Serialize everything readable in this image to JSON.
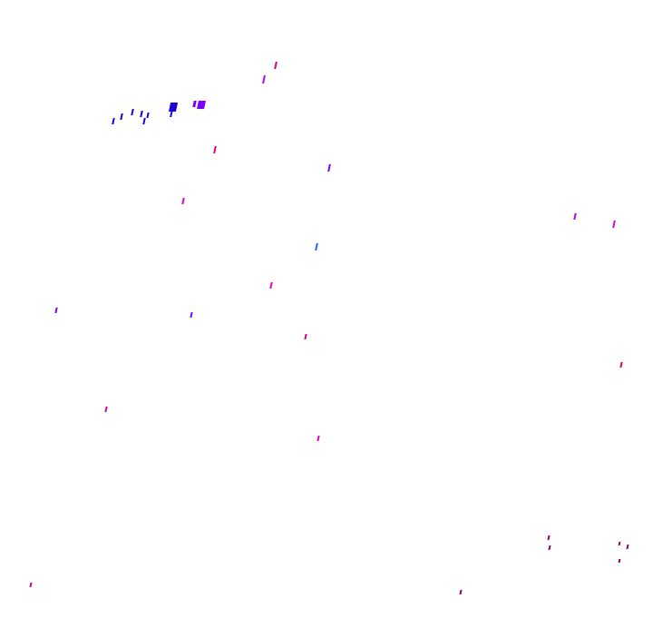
{
  "colors": {
    "blue": "#1a00d8",
    "violet": "#7a00ff",
    "purple": "#b000ff",
    "magenta": "#d0008a",
    "pink": "#e000c0",
    "azure": "#2060ff",
    "red": "#e00040",
    "maroon": "#900060"
  }
}
